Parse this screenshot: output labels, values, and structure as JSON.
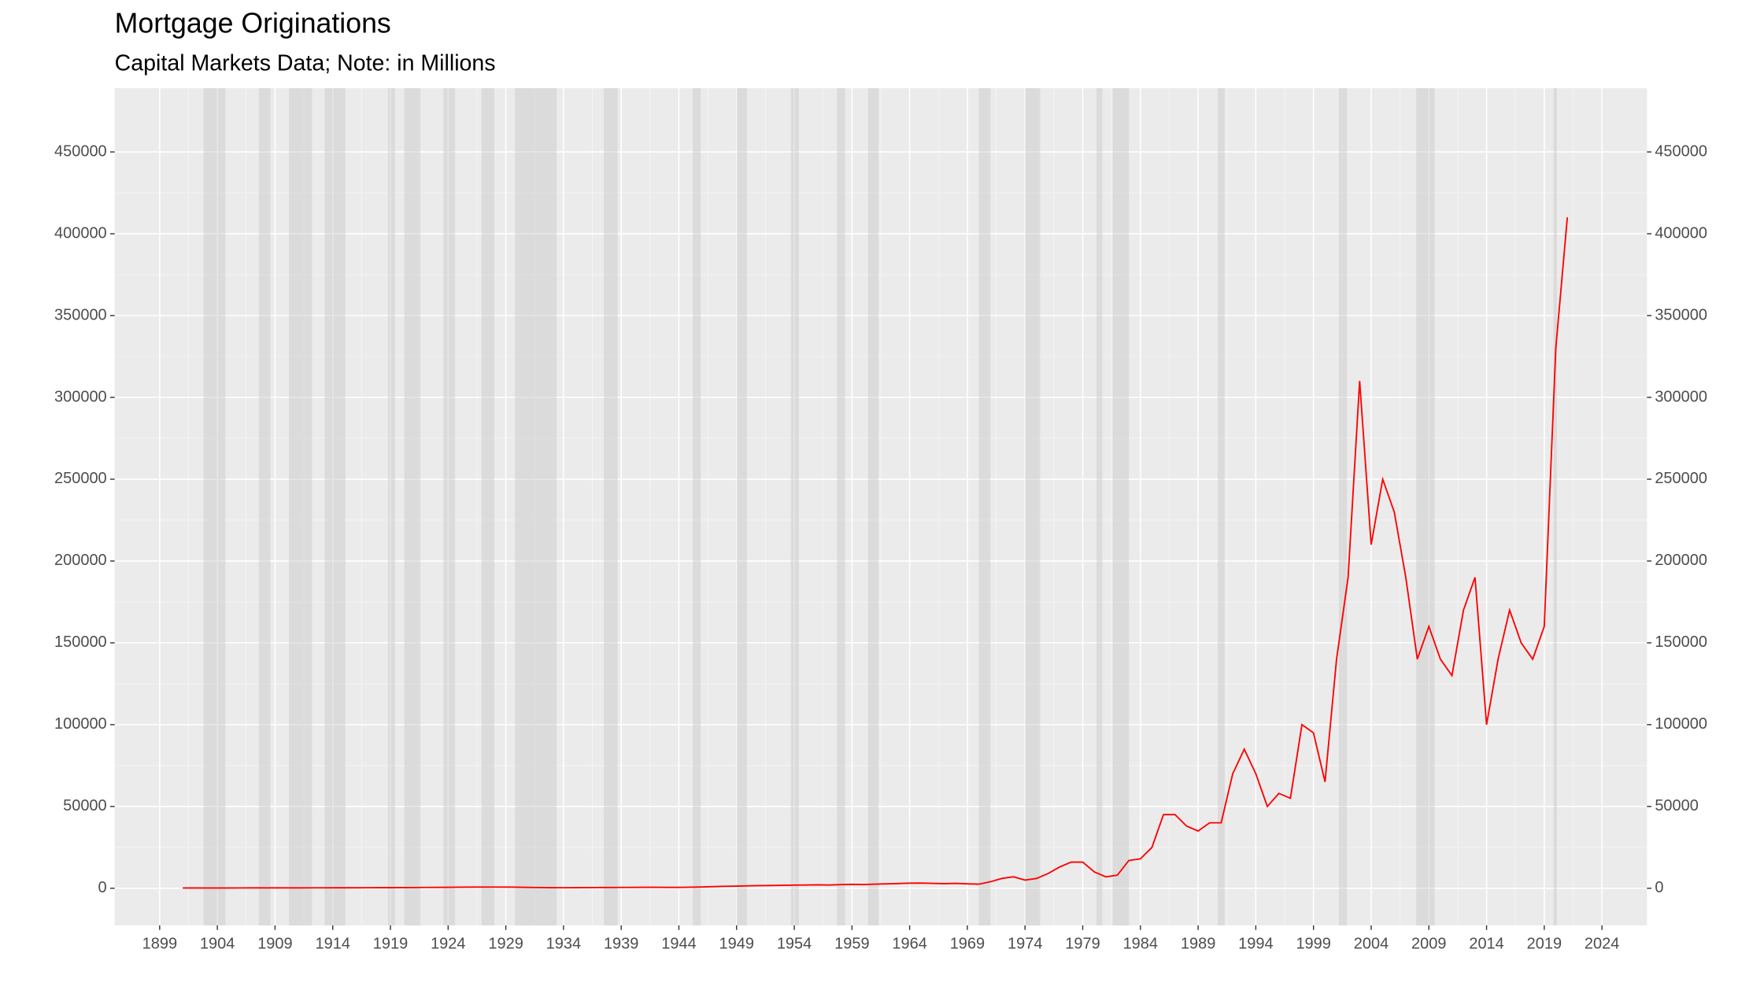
{
  "chart_data": {
    "type": "line",
    "title": "Mortgage Originations",
    "subtitle": "Capital Markets Data; Note: in Millions",
    "x": [
      1901,
      1902,
      1903,
      1904,
      1905,
      1906,
      1907,
      1908,
      1909,
      1910,
      1911,
      1912,
      1913,
      1914,
      1915,
      1916,
      1917,
      1918,
      1919,
      1920,
      1921,
      1922,
      1923,
      1924,
      1925,
      1926,
      1927,
      1928,
      1929,
      1930,
      1931,
      1932,
      1933,
      1934,
      1935,
      1936,
      1937,
      1938,
      1939,
      1940,
      1941,
      1942,
      1943,
      1944,
      1945,
      1946,
      1947,
      1948,
      1949,
      1950,
      1951,
      1952,
      1953,
      1954,
      1955,
      1956,
      1957,
      1958,
      1959,
      1960,
      1961,
      1962,
      1963,
      1964,
      1965,
      1966,
      1967,
      1968,
      1969,
      1970,
      1971,
      1972,
      1973,
      1974,
      1975,
      1976,
      1977,
      1978,
      1979,
      1980,
      1981,
      1982,
      1983,
      1984,
      1985,
      1986,
      1987,
      1988,
      1989,
      1990,
      1991,
      1992,
      1993,
      1994,
      1995,
      1996,
      1997,
      1998,
      1999,
      2000,
      2001,
      2002,
      2003,
      2004,
      2005,
      2006,
      2007,
      2008,
      2009,
      2010,
      2011,
      2012,
      2013,
      2014,
      2015,
      2016,
      2017,
      2018,
      2019,
      2020,
      2021
    ],
    "series": [
      {
        "name": "Mortgage Originations",
        "color": "#ff0000",
        "values": [
          150,
          160,
          170,
          180,
          190,
          200,
          210,
          220,
          230,
          240,
          250,
          260,
          270,
          280,
          290,
          300,
          320,
          340,
          380,
          420,
          450,
          500,
          550,
          600,
          650,
          700,
          720,
          740,
          700,
          650,
          550,
          450,
          350,
          320,
          350,
          400,
          450,
          480,
          500,
          550,
          600,
          600,
          550,
          550,
          650,
          800,
          1000,
          1200,
          1300,
          1500,
          1600,
          1700,
          1800,
          1900,
          2000,
          2100,
          2000,
          2200,
          2400,
          2300,
          2500,
          2700,
          2900,
          3100,
          3200,
          3000,
          2800,
          3000,
          2700,
          2500,
          4000,
          6000,
          7000,
          5000,
          6000,
          9000,
          13000,
          16000,
          16000,
          10000,
          7000,
          8000,
          17000,
          18000,
          25000,
          45000,
          45000,
          38000,
          35000,
          40000,
          40000,
          70000,
          85000,
          70000,
          50000,
          58000,
          55000,
          100000,
          95000,
          65000,
          140000,
          190000,
          310000,
          210000,
          250000,
          230000,
          190000,
          140000,
          160000,
          140000,
          130000,
          170000,
          190000,
          100000,
          140000,
          170000,
          150000,
          140000,
          160000,
          330000,
          410000
        ]
      }
    ],
    "recessions": [
      [
        1902.8,
        1904.7
      ],
      [
        1907.6,
        1908.6
      ],
      [
        1910.2,
        1912.2
      ],
      [
        1913.3,
        1915.1
      ],
      [
        1918.8,
        1919.4
      ],
      [
        1920.2,
        1921.6
      ],
      [
        1923.6,
        1924.6
      ],
      [
        1926.9,
        1928.0
      ],
      [
        1929.8,
        1933.4
      ],
      [
        1937.5,
        1938.7
      ],
      [
        1945.2,
        1945.9
      ],
      [
        1949.0,
        1949.9
      ],
      [
        1953.7,
        1954.4
      ],
      [
        1957.7,
        1958.4
      ],
      [
        1960.4,
        1961.3
      ],
      [
        1970.0,
        1971.0
      ],
      [
        1974.0,
        1975.3
      ],
      [
        1980.2,
        1980.7
      ],
      [
        1981.6,
        1983.0
      ],
      [
        1990.7,
        1991.3
      ],
      [
        2001.2,
        2001.9
      ],
      [
        2007.9,
        2009.5
      ],
      [
        2019.8,
        2020.1
      ]
    ],
    "xlim": [
      1895.1,
      2027.9
    ],
    "xticks": [
      1899,
      1904,
      1909,
      1914,
      1919,
      1924,
      1929,
      1934,
      1939,
      1944,
      1949,
      1954,
      1959,
      1964,
      1969,
      1974,
      1979,
      1984,
      1989,
      1994,
      1999,
      2004,
      2009,
      2014,
      2019,
      2024
    ],
    "ylim": [
      -22700,
      489000
    ],
    "yticks": [
      0,
      50000,
      100000,
      150000,
      200000,
      250000,
      300000,
      350000,
      400000,
      450000
    ],
    "y2lim": [
      -22700,
      489000
    ],
    "y2ticks": [
      0,
      50000,
      100000,
      150000,
      200000,
      250000,
      300000,
      350000,
      400000,
      450000
    ],
    "grid": true
  }
}
